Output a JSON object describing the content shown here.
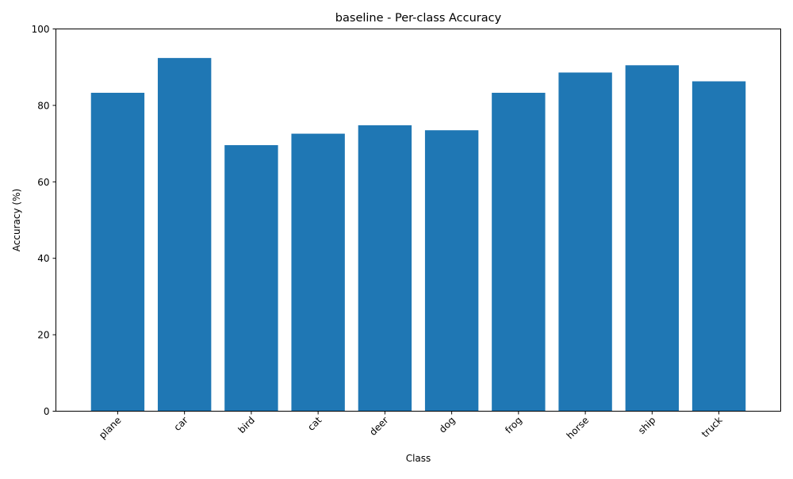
{
  "chart_data": {
    "type": "bar",
    "title": "baseline - Per-class Accuracy",
    "xlabel": "Class",
    "ylabel": "Accuracy (%)",
    "categories": [
      "plane",
      "car",
      "bird",
      "cat",
      "deer",
      "dog",
      "frog",
      "horse",
      "ship",
      "truck"
    ],
    "values": [
      83.3,
      92.4,
      69.6,
      72.6,
      74.8,
      73.5,
      83.3,
      88.6,
      90.5,
      86.3
    ],
    "ylim": [
      0,
      100
    ],
    "yticks": [
      0,
      20,
      40,
      60,
      80,
      100
    ],
    "bar_color": "#1f77b4",
    "grid": false,
    "legend": false
  }
}
